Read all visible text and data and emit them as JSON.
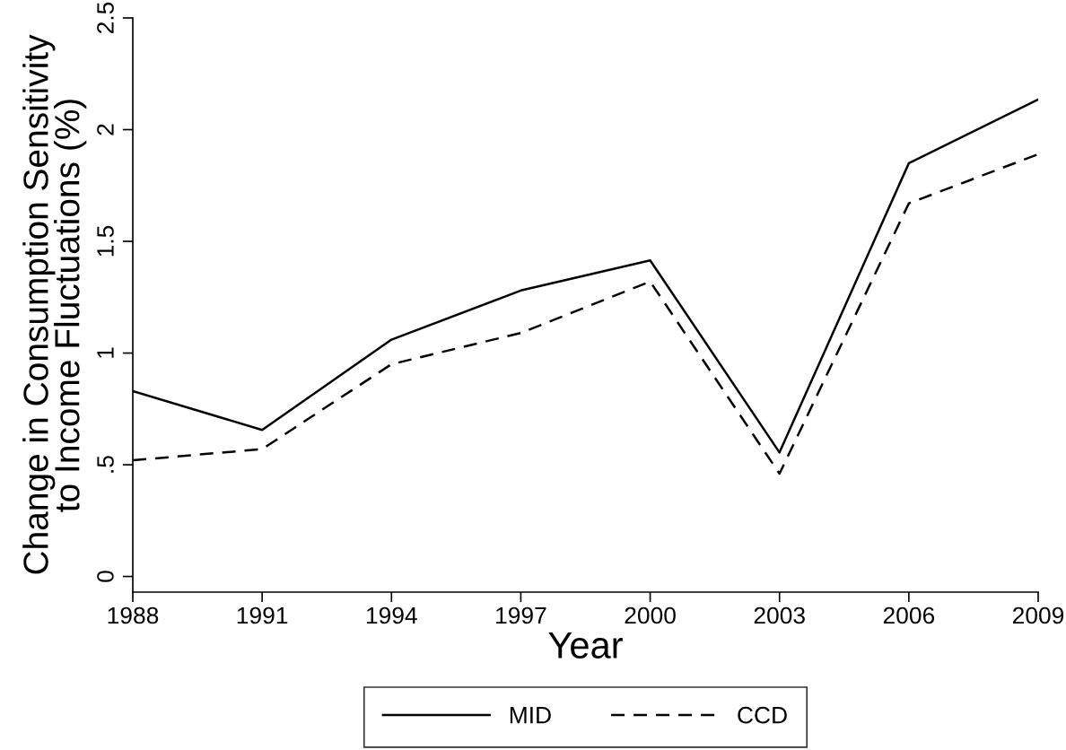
{
  "chart_data": {
    "type": "line",
    "xlabel": "Year",
    "ylabel": "Change in Consumption Sensitivity\nto Income Fluctuations (%)",
    "x": [
      1988,
      1991,
      1994,
      1997,
      2000,
      2003,
      2006,
      2009
    ],
    "series": [
      {
        "name": "MID",
        "color": "#000000",
        "line_style": "solid",
        "values": [
          0.83,
          0.656,
          1.06,
          1.28,
          1.415,
          0.555,
          1.85,
          2.135
        ]
      },
      {
        "name": "CCD",
        "color": "#000000",
        "line_style": "dashed",
        "values": [
          0.52,
          0.57,
          0.95,
          1.09,
          1.32,
          0.46,
          1.67,
          1.89
        ]
      }
    ],
    "xlim": [
      1988,
      2009
    ],
    "xticks": [
      1988,
      1991,
      1994,
      1997,
      2000,
      2003,
      2006,
      2009
    ],
    "ylim": [
      -0.07,
      2.5
    ],
    "yticks": [
      0,
      {
        "value": 0.5,
        "label": ".5"
      },
      1,
      1.5,
      2,
      2.5
    ],
    "grid": false,
    "legend": "bottom",
    "marker": "none"
  }
}
